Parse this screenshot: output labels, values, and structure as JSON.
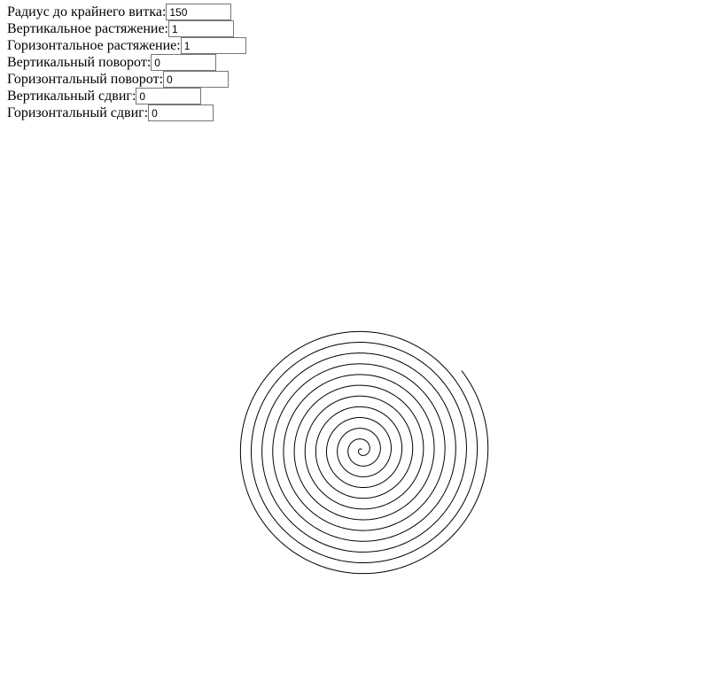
{
  "form": {
    "fields": [
      {
        "id": "radius",
        "label": "Радиус до крайнего витка:",
        "value": "150"
      },
      {
        "id": "v-stretch",
        "label": "Вертикальное растяжение:",
        "value": "1"
      },
      {
        "id": "h-stretch",
        "label": "Горизонтальное растяжение:",
        "value": "1"
      },
      {
        "id": "v-rotation",
        "label": "Вертикальный поворот:",
        "value": "0"
      },
      {
        "id": "h-rotation",
        "label": "Горизонтальный поворот:",
        "value": "0"
      },
      {
        "id": "v-shift",
        "label": "Вертикальный сдвиг:",
        "value": "0"
      },
      {
        "id": "h-shift",
        "label": "Горизонтальный сдвиг:",
        "value": "0"
      }
    ]
  },
  "spiral": {
    "stroke_color": "#000000",
    "turns": 12
  }
}
